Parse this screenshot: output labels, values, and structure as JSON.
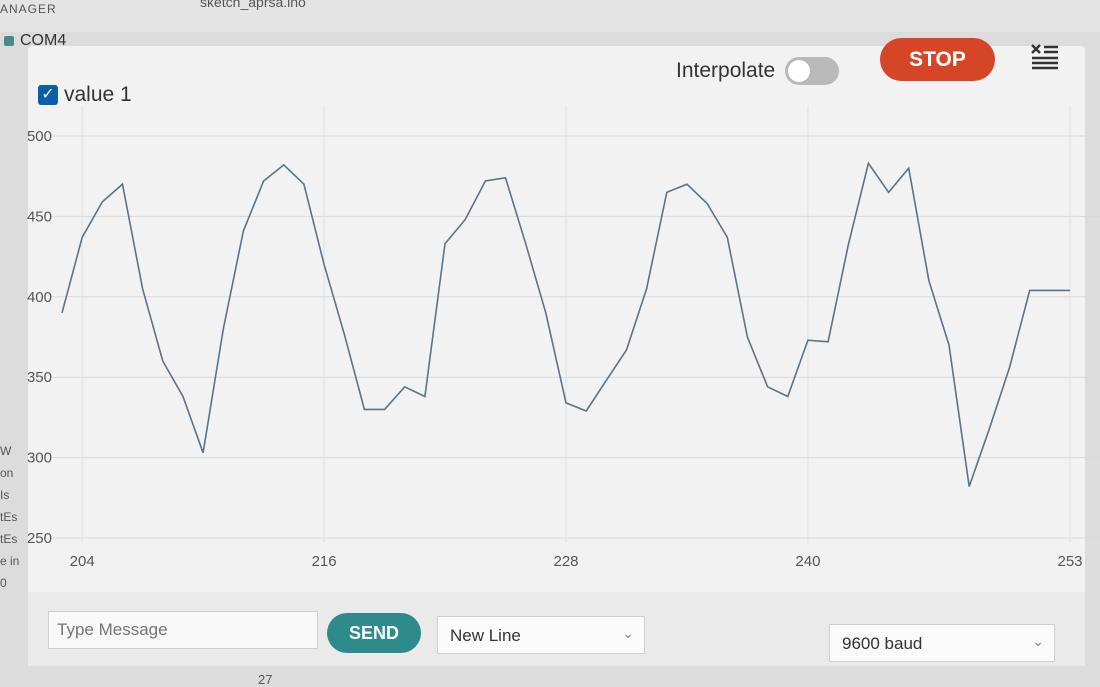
{
  "window": {
    "top_left_fragment": "ANAGER",
    "sketch_tab": "sketch_aprsa.ino",
    "port_label": "COM4",
    "below_fragment": "27"
  },
  "left_strip": [
    "W",
    "on",
    "Is",
    "tEs",
    "tEs",
    "e in",
    "0"
  ],
  "toolbar": {
    "interpolate_label": "Interpolate",
    "interpolate_on": false,
    "stop_label": "STOP",
    "clear_icon": "clear-list-icon"
  },
  "bottom": {
    "message_placeholder": "Type Message",
    "send_label": "SEND",
    "line_ending": "New Line",
    "baud": "9600 baud"
  },
  "colors": {
    "stop": "#d64525",
    "send": "#2f8a8c",
    "series": "#5b7386",
    "checkbox": "#0b5ea8"
  },
  "chart_data": {
    "type": "line",
    "title": "",
    "xlabel": "",
    "ylabel": "",
    "y_ticks": [
      250,
      300,
      350,
      400,
      450,
      500
    ],
    "x_ticks": [
      204,
      216,
      228,
      240,
      253
    ],
    "xlim": [
      203,
      253
    ],
    "ylim": [
      250,
      500
    ],
    "grid": true,
    "legend_position": "top-left",
    "series": [
      {
        "name": "value 1",
        "checked": true,
        "x": [
          203,
          204,
          205,
          206,
          207,
          208,
          209,
          210,
          211,
          212,
          213,
          214,
          215,
          216,
          217,
          218,
          219,
          220,
          221,
          222,
          223,
          224,
          225,
          226,
          227,
          228,
          229,
          230,
          231,
          232,
          233,
          234,
          235,
          236,
          237,
          238,
          239,
          240,
          241,
          242,
          243,
          244,
          245,
          246,
          247,
          248,
          249,
          250,
          251,
          252,
          253
        ],
        "y": [
          390,
          437,
          459,
          470,
          405,
          360,
          338,
          303,
          380,
          441,
          472,
          482,
          470,
          420,
          377,
          330,
          330,
          344,
          338,
          433,
          448,
          472,
          474,
          433,
          390,
          334,
          329,
          348,
          367,
          405,
          465,
          470,
          458,
          437,
          375,
          344,
          338,
          373,
          372,
          432,
          483,
          465,
          480,
          410,
          370,
          282,
          318,
          356,
          404,
          404,
          404
        ]
      }
    ]
  }
}
